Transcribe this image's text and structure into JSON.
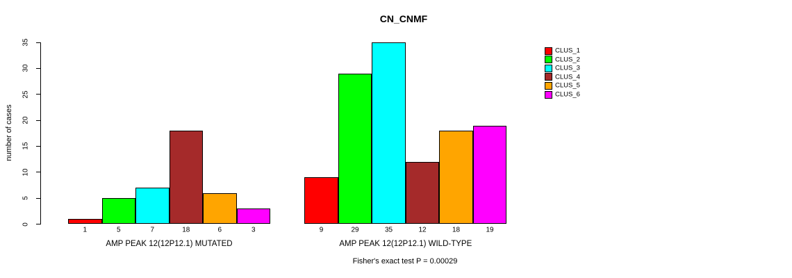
{
  "chart_data": {
    "type": "bar",
    "title": "CN_CNMF",
    "ylabel": "number of cases",
    "xlabel": "",
    "ylim": [
      0,
      35
    ],
    "yticks": [
      0,
      5,
      10,
      15,
      20,
      25,
      30,
      35
    ],
    "grid": false,
    "legend_position": "right",
    "clusters": [
      {
        "name": "CLUS_1",
        "color": "#FF0000"
      },
      {
        "name": "CLUS_2",
        "color": "#00FF00"
      },
      {
        "name": "CLUS_3",
        "color": "#00FFFF"
      },
      {
        "name": "CLUS_4",
        "color": "#A52A2A"
      },
      {
        "name": "CLUS_5",
        "color": "#FFA500"
      },
      {
        "name": "CLUS_6",
        "color": "#FF00FF"
      }
    ],
    "groups": [
      {
        "label": "AMP PEAK 12(12P12.1) MUTATED",
        "values": [
          1,
          5,
          7,
          18,
          6,
          3
        ]
      },
      {
        "label": "AMP PEAK 12(12P12.1) WILD-TYPE",
        "values": [
          9,
          29,
          35,
          12,
          18,
          19
        ]
      }
    ],
    "annotation": "Fisher's exact test P = 0.00029"
  }
}
